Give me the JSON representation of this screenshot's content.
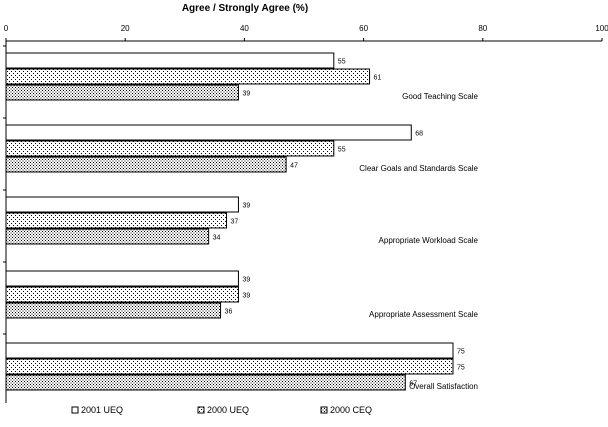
{
  "chart_data": {
    "type": "bar",
    "orientation": "horizontal",
    "title": "Agree / Strongly Agree (%)",
    "xlim": [
      0,
      100
    ],
    "xticks": [
      "0",
      "20",
      "40",
      "60",
      "80",
      "100"
    ],
    "tick_values": [
      0,
      20,
      40,
      60,
      80,
      100
    ],
    "categories": [
      "Good Teaching Scale",
      "Clear Goals and Standards Scale",
      "Appropriate Workload Scale",
      "Appropriate Assessment Scale",
      "Overall Satisfaction"
    ],
    "series": [
      {
        "name": "2001 UEQ",
        "pattern": "white",
        "values": [
          55,
          68,
          39,
          39,
          75
        ]
      },
      {
        "name": "2000 UEQ",
        "pattern": "dots-fine",
        "values": [
          61,
          55,
          37,
          39,
          75
        ]
      },
      {
        "name": "2000 CEQ",
        "pattern": "dots-dense",
        "values": [
          39,
          47,
          34,
          36,
          67
        ]
      }
    ],
    "legend_position": "bottom",
    "colors": {
      "border": "#000000",
      "background": "#ffffff"
    }
  }
}
